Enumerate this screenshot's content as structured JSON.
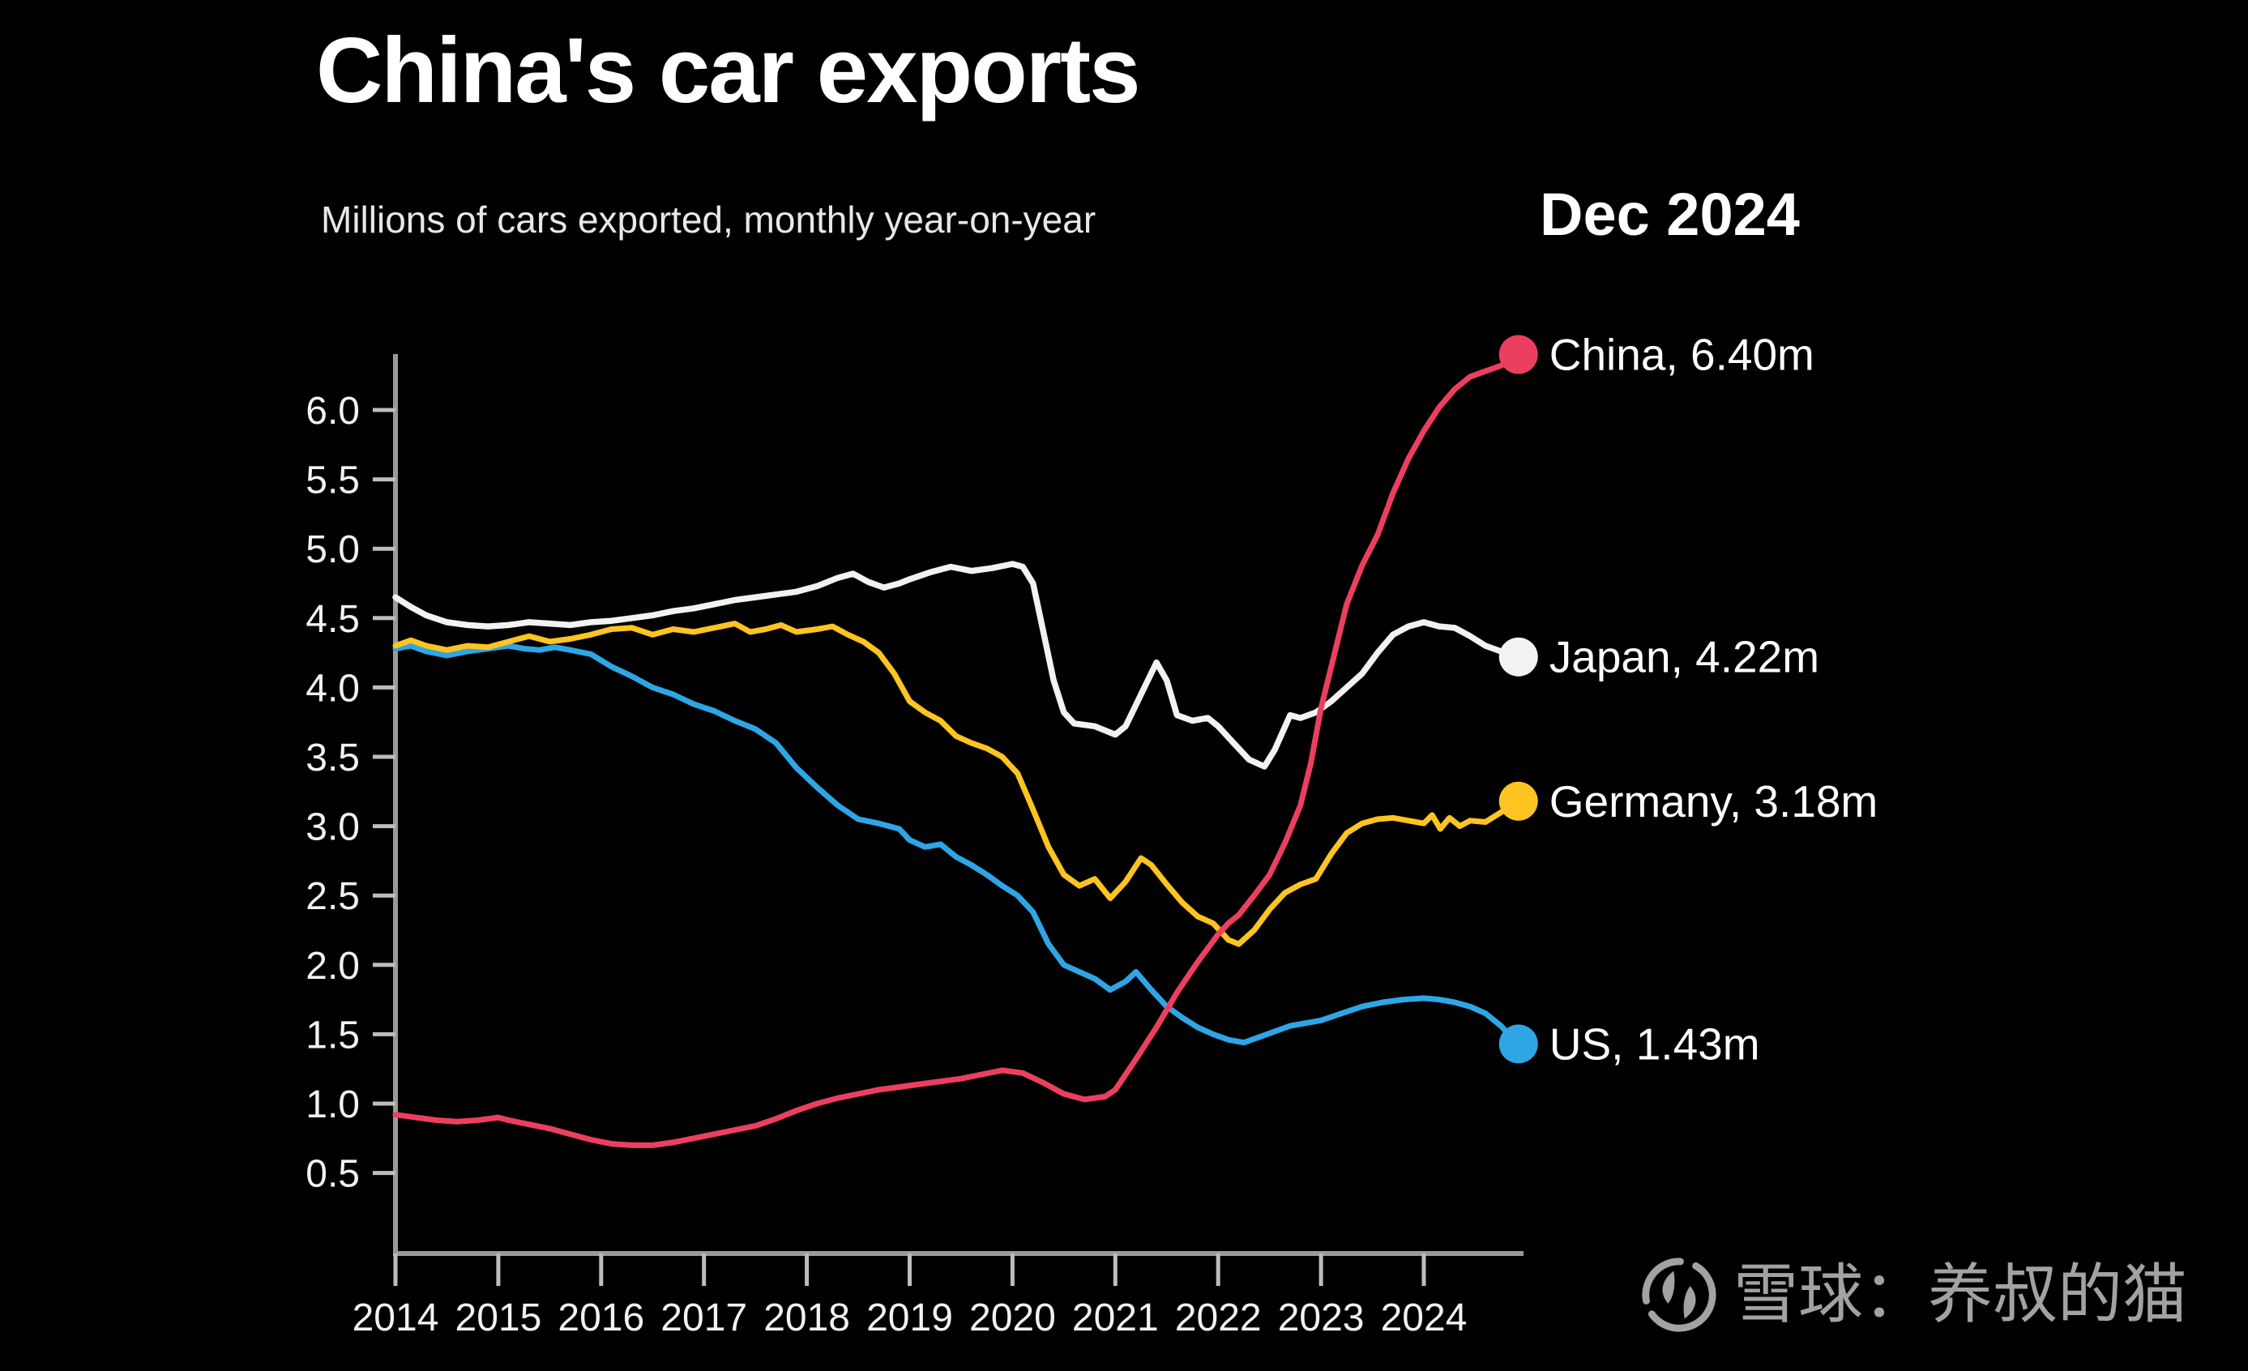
{
  "header": {
    "title": "China's car exports",
    "subtitle": "Millions of cars exported, monthly year-on-year",
    "period_label": "Dec 2024"
  },
  "watermark": {
    "logo": "snowball-logo",
    "text": "雪球：养叔的猫",
    "color": "#a2a2a2"
  },
  "colors": {
    "background": "#000000",
    "axis": "#9a9a9a",
    "tick_text": "#f2f2f2",
    "china": "#ec3f60",
    "japan": "#f2f2f2",
    "germany": "#fdc422",
    "us": "#2ea6e6"
  },
  "chart_data": {
    "type": "line",
    "title": "China's car exports",
    "subtitle": "Millions of cars exported, monthly year-on-year",
    "as_of": "Dec 2024",
    "xlabel": "",
    "ylabel": "Millions of cars exported",
    "x_range": [
      2014,
      2024.92
    ],
    "ylim": [
      0,
      6.4
    ],
    "grid": false,
    "legend_position": "right-end-labels",
    "xticks": [
      {
        "v": 2014,
        "label": "2014"
      },
      {
        "v": 2015,
        "label": "2015"
      },
      {
        "v": 2016,
        "label": "2016"
      },
      {
        "v": 2017,
        "label": "2017"
      },
      {
        "v": 2018,
        "label": "2018"
      },
      {
        "v": 2019,
        "label": "2019"
      },
      {
        "v": 2020,
        "label": "2020"
      },
      {
        "v": 2021,
        "label": "2021"
      },
      {
        "v": 2022,
        "label": "2022"
      },
      {
        "v": 2023,
        "label": "2023"
      },
      {
        "v": 2024,
        "label": "2024"
      }
    ],
    "yticks": [
      {
        "v": 6.0,
        "label": "6.0"
      },
      {
        "v": 5.5,
        "label": "5.5"
      },
      {
        "v": 5.0,
        "label": "5.0"
      },
      {
        "v": 4.5,
        "label": "4.5"
      },
      {
        "v": 4.0,
        "label": "4.0"
      },
      {
        "v": 3.5,
        "label": "3.5"
      },
      {
        "v": 3.0,
        "label": "3.0"
      },
      {
        "v": 2.5,
        "label": "2.5"
      },
      {
        "v": 2.0,
        "label": "2.0"
      },
      {
        "v": 1.5,
        "label": "1.5"
      },
      {
        "v": 1.0,
        "label": "1.0"
      },
      {
        "v": 0.5,
        "label": "0.5"
      }
    ],
    "series": [
      {
        "name": "us",
        "end_label": "US, 1.43m",
        "end_value": 1.43,
        "color": "#2ea6e6",
        "line_width": 7,
        "points": [
          [
            2014.0,
            4.28
          ],
          [
            2014.15,
            4.3
          ],
          [
            2014.3,
            4.26
          ],
          [
            2014.5,
            4.23
          ],
          [
            2014.7,
            4.26
          ],
          [
            2014.9,
            4.28
          ],
          [
            2015.1,
            4.3
          ],
          [
            2015.25,
            4.28
          ],
          [
            2015.4,
            4.27
          ],
          [
            2015.55,
            4.29
          ],
          [
            2015.7,
            4.27
          ],
          [
            2015.9,
            4.24
          ],
          [
            2016.1,
            4.15
          ],
          [
            2016.3,
            4.08
          ],
          [
            2016.5,
            4.0
          ],
          [
            2016.7,
            3.95
          ],
          [
            2016.9,
            3.88
          ],
          [
            2017.1,
            3.83
          ],
          [
            2017.3,
            3.76
          ],
          [
            2017.5,
            3.7
          ],
          [
            2017.7,
            3.6
          ],
          [
            2017.9,
            3.42
          ],
          [
            2018.1,
            3.28
          ],
          [
            2018.3,
            3.15
          ],
          [
            2018.5,
            3.05
          ],
          [
            2018.7,
            3.02
          ],
          [
            2018.9,
            2.98
          ],
          [
            2019.0,
            2.9
          ],
          [
            2019.15,
            2.85
          ],
          [
            2019.3,
            2.87
          ],
          [
            2019.45,
            2.78
          ],
          [
            2019.6,
            2.72
          ],
          [
            2019.75,
            2.65
          ],
          [
            2019.9,
            2.57
          ],
          [
            2020.05,
            2.5
          ],
          [
            2020.2,
            2.38
          ],
          [
            2020.35,
            2.15
          ],
          [
            2020.5,
            2.0
          ],
          [
            2020.65,
            1.95
          ],
          [
            2020.8,
            1.9
          ],
          [
            2020.95,
            1.82
          ],
          [
            2021.1,
            1.88
          ],
          [
            2021.2,
            1.95
          ],
          [
            2021.35,
            1.82
          ],
          [
            2021.5,
            1.7
          ],
          [
            2021.65,
            1.62
          ],
          [
            2021.8,
            1.55
          ],
          [
            2021.95,
            1.5
          ],
          [
            2022.1,
            1.46
          ],
          [
            2022.25,
            1.44
          ],
          [
            2022.4,
            1.48
          ],
          [
            2022.55,
            1.52
          ],
          [
            2022.7,
            1.56
          ],
          [
            2022.85,
            1.58
          ],
          [
            2023.0,
            1.6
          ],
          [
            2023.2,
            1.65
          ],
          [
            2023.4,
            1.7
          ],
          [
            2023.6,
            1.73
          ],
          [
            2023.8,
            1.75
          ],
          [
            2024.0,
            1.76
          ],
          [
            2024.15,
            1.75
          ],
          [
            2024.3,
            1.73
          ],
          [
            2024.45,
            1.7
          ],
          [
            2024.6,
            1.65
          ],
          [
            2024.75,
            1.56
          ],
          [
            2024.85,
            1.48
          ],
          [
            2024.92,
            1.43
          ]
        ]
      },
      {
        "name": "germany",
        "end_label": "Germany, 3.18m",
        "end_value": 3.18,
        "color": "#fdc422",
        "line_width": 7,
        "points": [
          [
            2014.0,
            4.3
          ],
          [
            2014.15,
            4.34
          ],
          [
            2014.3,
            4.3
          ],
          [
            2014.5,
            4.27
          ],
          [
            2014.7,
            4.3
          ],
          [
            2014.9,
            4.29
          ],
          [
            2015.1,
            4.33
          ],
          [
            2015.3,
            4.37
          ],
          [
            2015.5,
            4.33
          ],
          [
            2015.7,
            4.35
          ],
          [
            2015.9,
            4.38
          ],
          [
            2016.1,
            4.42
          ],
          [
            2016.3,
            4.43
          ],
          [
            2016.5,
            4.38
          ],
          [
            2016.7,
            4.42
          ],
          [
            2016.9,
            4.4
          ],
          [
            2017.1,
            4.43
          ],
          [
            2017.3,
            4.46
          ],
          [
            2017.45,
            4.4
          ],
          [
            2017.6,
            4.42
          ],
          [
            2017.75,
            4.45
          ],
          [
            2017.9,
            4.4
          ],
          [
            2018.1,
            4.42
          ],
          [
            2018.25,
            4.44
          ],
          [
            2018.4,
            4.38
          ],
          [
            2018.55,
            4.33
          ],
          [
            2018.7,
            4.25
          ],
          [
            2018.85,
            4.1
          ],
          [
            2019.0,
            3.9
          ],
          [
            2019.15,
            3.82
          ],
          [
            2019.3,
            3.76
          ],
          [
            2019.45,
            3.65
          ],
          [
            2019.6,
            3.6
          ],
          [
            2019.75,
            3.56
          ],
          [
            2019.9,
            3.5
          ],
          [
            2020.05,
            3.38
          ],
          [
            2020.2,
            3.12
          ],
          [
            2020.35,
            2.85
          ],
          [
            2020.5,
            2.65
          ],
          [
            2020.65,
            2.57
          ],
          [
            2020.8,
            2.62
          ],
          [
            2020.95,
            2.48
          ],
          [
            2021.1,
            2.6
          ],
          [
            2021.25,
            2.77
          ],
          [
            2021.35,
            2.72
          ],
          [
            2021.5,
            2.58
          ],
          [
            2021.65,
            2.45
          ],
          [
            2021.8,
            2.35
          ],
          [
            2021.95,
            2.3
          ],
          [
            2022.1,
            2.18
          ],
          [
            2022.2,
            2.15
          ],
          [
            2022.35,
            2.25
          ],
          [
            2022.5,
            2.4
          ],
          [
            2022.65,
            2.52
          ],
          [
            2022.8,
            2.58
          ],
          [
            2022.95,
            2.62
          ],
          [
            2023.1,
            2.8
          ],
          [
            2023.25,
            2.95
          ],
          [
            2023.4,
            3.02
          ],
          [
            2023.55,
            3.05
          ],
          [
            2023.7,
            3.06
          ],
          [
            2023.85,
            3.04
          ],
          [
            2024.0,
            3.02
          ],
          [
            2024.08,
            3.08
          ],
          [
            2024.16,
            2.98
          ],
          [
            2024.25,
            3.06
          ],
          [
            2024.35,
            3.0
          ],
          [
            2024.45,
            3.04
          ],
          [
            2024.6,
            3.03
          ],
          [
            2024.75,
            3.1
          ],
          [
            2024.85,
            3.15
          ],
          [
            2024.92,
            3.18
          ]
        ]
      },
      {
        "name": "japan",
        "end_label": "Japan, 4.22m",
        "end_value": 4.22,
        "color": "#f2f2f2",
        "line_width": 7.5,
        "points": [
          [
            2014.0,
            4.65
          ],
          [
            2014.15,
            4.58
          ],
          [
            2014.3,
            4.52
          ],
          [
            2014.5,
            4.47
          ],
          [
            2014.7,
            4.45
          ],
          [
            2014.9,
            4.44
          ],
          [
            2015.1,
            4.45
          ],
          [
            2015.3,
            4.47
          ],
          [
            2015.5,
            4.46
          ],
          [
            2015.7,
            4.45
          ],
          [
            2015.9,
            4.47
          ],
          [
            2016.1,
            4.48
          ],
          [
            2016.3,
            4.5
          ],
          [
            2016.5,
            4.52
          ],
          [
            2016.7,
            4.55
          ],
          [
            2016.9,
            4.57
          ],
          [
            2017.1,
            4.6
          ],
          [
            2017.3,
            4.63
          ],
          [
            2017.5,
            4.65
          ],
          [
            2017.7,
            4.67
          ],
          [
            2017.9,
            4.69
          ],
          [
            2018.1,
            4.73
          ],
          [
            2018.3,
            4.79
          ],
          [
            2018.45,
            4.82
          ],
          [
            2018.6,
            4.76
          ],
          [
            2018.75,
            4.72
          ],
          [
            2018.9,
            4.75
          ],
          [
            2019.0,
            4.78
          ],
          [
            2019.2,
            4.83
          ],
          [
            2019.4,
            4.87
          ],
          [
            2019.6,
            4.84
          ],
          [
            2019.8,
            4.86
          ],
          [
            2020.0,
            4.89
          ],
          [
            2020.1,
            4.87
          ],
          [
            2020.2,
            4.75
          ],
          [
            2020.3,
            4.4
          ],
          [
            2020.4,
            4.05
          ],
          [
            2020.5,
            3.82
          ],
          [
            2020.6,
            3.74
          ],
          [
            2020.8,
            3.72
          ],
          [
            2021.0,
            3.66
          ],
          [
            2021.1,
            3.72
          ],
          [
            2021.25,
            3.95
          ],
          [
            2021.4,
            4.18
          ],
          [
            2021.5,
            4.05
          ],
          [
            2021.6,
            3.8
          ],
          [
            2021.75,
            3.76
          ],
          [
            2021.9,
            3.78
          ],
          [
            2022.0,
            3.72
          ],
          [
            2022.15,
            3.6
          ],
          [
            2022.3,
            3.48
          ],
          [
            2022.45,
            3.43
          ],
          [
            2022.55,
            3.55
          ],
          [
            2022.7,
            3.8
          ],
          [
            2022.8,
            3.78
          ],
          [
            2022.95,
            3.82
          ],
          [
            2023.1,
            3.9
          ],
          [
            2023.25,
            4.0
          ],
          [
            2023.4,
            4.1
          ],
          [
            2023.55,
            4.25
          ],
          [
            2023.7,
            4.38
          ],
          [
            2023.85,
            4.44
          ],
          [
            2024.0,
            4.47
          ],
          [
            2024.15,
            4.44
          ],
          [
            2024.3,
            4.43
          ],
          [
            2024.45,
            4.37
          ],
          [
            2024.6,
            4.3
          ],
          [
            2024.75,
            4.26
          ],
          [
            2024.92,
            4.22
          ]
        ]
      },
      {
        "name": "china",
        "end_label": "China, 6.40m",
        "end_value": 6.4,
        "color": "#ec3f60",
        "line_width": 7,
        "points": [
          [
            2014.0,
            0.92
          ],
          [
            2014.2,
            0.9
          ],
          [
            2014.4,
            0.88
          ],
          [
            2014.6,
            0.87
          ],
          [
            2014.8,
            0.88
          ],
          [
            2015.0,
            0.9
          ],
          [
            2015.1,
            0.88
          ],
          [
            2015.3,
            0.85
          ],
          [
            2015.5,
            0.82
          ],
          [
            2015.7,
            0.78
          ],
          [
            2015.9,
            0.74
          ],
          [
            2016.1,
            0.71
          ],
          [
            2016.3,
            0.7
          ],
          [
            2016.5,
            0.7
          ],
          [
            2016.7,
            0.72
          ],
          [
            2016.9,
            0.75
          ],
          [
            2017.1,
            0.78
          ],
          [
            2017.3,
            0.81
          ],
          [
            2017.5,
            0.84
          ],
          [
            2017.7,
            0.89
          ],
          [
            2017.9,
            0.95
          ],
          [
            2018.1,
            1.0
          ],
          [
            2018.3,
            1.04
          ],
          [
            2018.5,
            1.07
          ],
          [
            2018.7,
            1.1
          ],
          [
            2018.9,
            1.12
          ],
          [
            2019.1,
            1.14
          ],
          [
            2019.3,
            1.16
          ],
          [
            2019.5,
            1.18
          ],
          [
            2019.7,
            1.21
          ],
          [
            2019.9,
            1.24
          ],
          [
            2020.1,
            1.22
          ],
          [
            2020.3,
            1.15
          ],
          [
            2020.5,
            1.07
          ],
          [
            2020.7,
            1.03
          ],
          [
            2020.9,
            1.05
          ],
          [
            2021.0,
            1.1
          ],
          [
            2021.2,
            1.32
          ],
          [
            2021.4,
            1.55
          ],
          [
            2021.6,
            1.8
          ],
          [
            2021.8,
            2.02
          ],
          [
            2022.0,
            2.22
          ],
          [
            2022.1,
            2.3
          ],
          [
            2022.2,
            2.36
          ],
          [
            2022.35,
            2.5
          ],
          [
            2022.5,
            2.65
          ],
          [
            2022.65,
            2.88
          ],
          [
            2022.8,
            3.15
          ],
          [
            2022.9,
            3.45
          ],
          [
            2023.0,
            3.85
          ],
          [
            2023.1,
            4.15
          ],
          [
            2023.25,
            4.6
          ],
          [
            2023.4,
            4.88
          ],
          [
            2023.55,
            5.1
          ],
          [
            2023.7,
            5.4
          ],
          [
            2023.85,
            5.65
          ],
          [
            2024.0,
            5.85
          ],
          [
            2024.15,
            6.02
          ],
          [
            2024.3,
            6.15
          ],
          [
            2024.45,
            6.24
          ],
          [
            2024.6,
            6.28
          ],
          [
            2024.75,
            6.32
          ],
          [
            2024.85,
            6.36
          ],
          [
            2024.92,
            6.4
          ]
        ]
      }
    ]
  }
}
